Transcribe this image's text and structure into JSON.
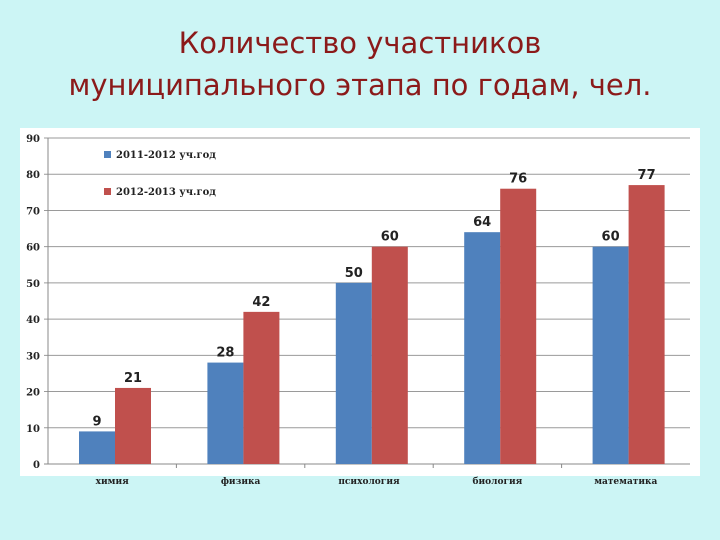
{
  "title": {
    "line1": "Количество участников",
    "line2": "муниципального этапа по годам, чел."
  },
  "chart_data": {
    "type": "bar",
    "title": "Количество участников муниципального этапа по годам, чел.",
    "categories": [
      "химия",
      "физика",
      "психология",
      "биология",
      "математика"
    ],
    "series": [
      {
        "name": "2011-2012 уч.год",
        "color": "#4f81bd",
        "values": [
          9,
          28,
          50,
          64,
          60
        ]
      },
      {
        "name": "2012-2013 уч.год",
        "color": "#c0504d",
        "values": [
          21,
          42,
          60,
          76,
          77
        ]
      }
    ],
    "ylim": [
      0,
      90
    ],
    "yticks": [
      0,
      10,
      20,
      30,
      40,
      50,
      60,
      70,
      80,
      90
    ],
    "grid": true,
    "legend": "top-left",
    "xlabel": "",
    "ylabel": ""
  }
}
